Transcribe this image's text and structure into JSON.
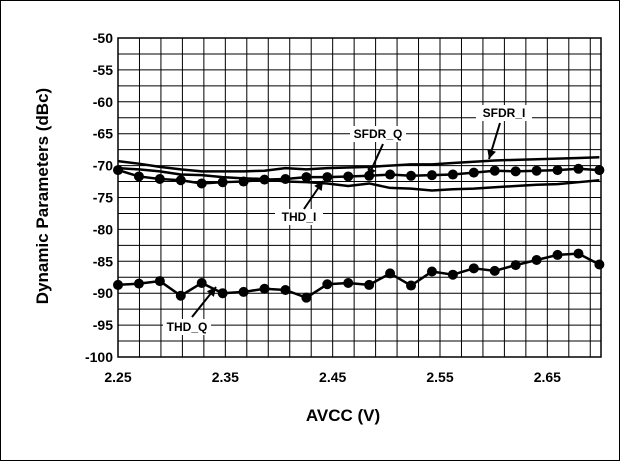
{
  "chart_data": {
    "type": "line",
    "xlabel": "AVCC (V)",
    "ylabel": "Dynamic Parameters (dBc)",
    "xlim": [
      2.25,
      2.7
    ],
    "ylim": [
      -100,
      -50
    ],
    "x_ticks": [
      "2.25",
      "2.35",
      "2.45",
      "2.55",
      "2.65"
    ],
    "y_ticks": [
      "-50",
      "-55",
      "-60",
      "-65",
      "-70",
      "-75",
      "-80",
      "-85",
      "-90",
      "-95",
      "-100"
    ],
    "grid": true,
    "x": [
      2.25,
      2.2695,
      2.289,
      2.3085,
      2.328,
      2.3475,
      2.367,
      2.3865,
      2.406,
      2.4255,
      2.445,
      2.4645,
      2.484,
      2.5035,
      2.523,
      2.5425,
      2.562,
      2.5815,
      2.601,
      2.6205,
      2.64,
      2.6595,
      2.679,
      2.6985
    ],
    "series": [
      {
        "name": "SFDR_I",
        "markers": false,
        "values": [
          -69.3,
          -69.7,
          -70.2,
          -70.6,
          -70.9,
          -70.9,
          -70.9,
          -70.8,
          -70.4,
          -70.6,
          -70.4,
          -70.3,
          -70.2,
          -70.0,
          -69.8,
          -69.8,
          -69.6,
          -69.4,
          -69.2,
          -69.1,
          -69.0,
          -68.9,
          -68.8,
          -68.7
        ]
      },
      {
        "name": "THD_I",
        "markers": false,
        "values": [
          -70.4,
          -70.6,
          -70.9,
          -71.4,
          -71.5,
          -71.8,
          -72.0,
          -72.1,
          -72.5,
          -72.6,
          -72.8,
          -73.2,
          -72.8,
          -73.5,
          -73.6,
          -73.9,
          -73.7,
          -73.6,
          -73.4,
          -73.2,
          -73.0,
          -72.9,
          -72.6,
          -72.3
        ]
      },
      {
        "name": "SFDR_Q",
        "markers": true,
        "values": [
          -70.7,
          -71.7,
          -72.1,
          -72.3,
          -72.8,
          -72.6,
          -72.5,
          -72.2,
          -72.1,
          -71.8,
          -71.8,
          -71.7,
          -71.6,
          -71.4,
          -71.6,
          -71.5,
          -71.4,
          -71.1,
          -70.8,
          -70.9,
          -70.8,
          -70.7,
          -70.5,
          -70.7
        ]
      },
      {
        "name": "THD_Q",
        "markers": true,
        "values": [
          -88.7,
          -88.5,
          -88.1,
          -90.4,
          -88.4,
          -90.0,
          -89.8,
          -89.3,
          -89.5,
          -90.7,
          -88.6,
          -88.4,
          -88.7,
          -86.9,
          -88.8,
          -86.6,
          -87.1,
          -86.1,
          -86.5,
          -85.6,
          -84.8,
          -84.0,
          -83.8,
          -85.5
        ]
      }
    ],
    "annotations": [
      {
        "text": "SFDR_I",
        "series": "SFDR_I"
      },
      {
        "text": "SFDR_Q",
        "series": "SFDR_Q"
      },
      {
        "text": "THD_I",
        "series": "THD_I"
      },
      {
        "text": "THD_Q",
        "series": "THD_Q"
      }
    ]
  }
}
